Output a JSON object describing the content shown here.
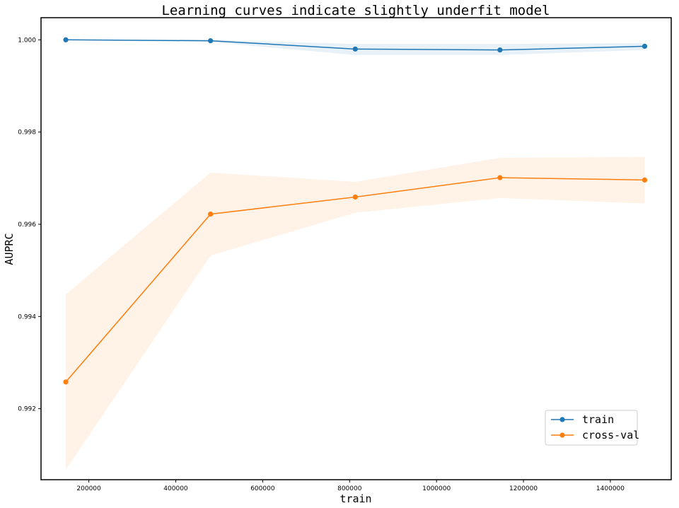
{
  "chart_data": {
    "type": "line",
    "title": "Learning curves indicate slightly underfit model",
    "xlabel": "train",
    "ylabel": "AUPRC",
    "xlim": [
      90000,
      1540000
    ],
    "ylim": [
      0.99046,
      1.00048
    ],
    "x_ticks": [
      200000,
      400000,
      600000,
      800000,
      1000000,
      1200000,
      1400000
    ],
    "x_tick_labels": [
      "200000",
      "400000",
      "600000",
      "800000",
      "1000000",
      "1200000",
      "1400000"
    ],
    "y_ticks": [
      0.992,
      0.994,
      0.996,
      0.998,
      1.0
    ],
    "y_tick_labels": [
      "0.992",
      "0.994",
      "0.996",
      "0.998",
      "1.000"
    ],
    "grid": false,
    "legend": "lower-right",
    "x": [
      147000,
      480000,
      813000,
      1146000,
      1479000
    ],
    "series": [
      {
        "name": "train",
        "color": "#1f77b4",
        "values": [
          1.0,
          0.99998,
          0.9998,
          0.99978,
          0.99986
        ],
        "band_upper": [
          1.0,
          1.0,
          0.99991,
          0.99991,
          0.99993
        ],
        "band_lower": [
          1.0,
          0.99995,
          0.99967,
          0.99967,
          0.99978
        ]
      },
      {
        "name": "cross-val",
        "color": "#ff7f0e",
        "values": [
          0.99258,
          0.99622,
          0.99659,
          0.99701,
          0.99696
        ],
        "band_upper": [
          0.99448,
          0.99712,
          0.99692,
          0.99744,
          0.99746
        ],
        "band_lower": [
          0.99068,
          0.99532,
          0.99625,
          0.99657,
          0.99645
        ]
      }
    ]
  }
}
